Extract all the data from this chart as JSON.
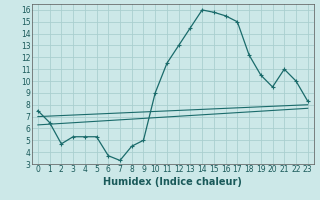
{
  "title": "",
  "xlabel": "Humidex (Indice chaleur)",
  "bg_color": "#cce8e8",
  "grid_color": "#aacfcf",
  "line_color": "#1a6b6b",
  "xlim": [
    -0.5,
    23.5
  ],
  "ylim": [
    3,
    16.5
  ],
  "x_ticks": [
    0,
    1,
    2,
    3,
    4,
    5,
    6,
    7,
    8,
    9,
    10,
    11,
    12,
    13,
    14,
    15,
    16,
    17,
    18,
    19,
    20,
    21,
    22,
    23
  ],
  "y_ticks": [
    3,
    4,
    5,
    6,
    7,
    8,
    9,
    10,
    11,
    12,
    13,
    14,
    15,
    16
  ],
  "main_x": [
    0,
    1,
    2,
    3,
    4,
    5,
    6,
    7,
    8,
    9,
    10,
    11,
    12,
    13,
    14,
    15,
    16,
    17,
    18,
    19,
    20,
    21,
    22,
    23
  ],
  "main_y": [
    7.5,
    6.5,
    4.7,
    5.3,
    5.3,
    5.3,
    3.7,
    3.3,
    4.5,
    5.0,
    9.0,
    11.5,
    13.0,
    14.5,
    16.0,
    15.8,
    15.5,
    15.0,
    12.2,
    10.5,
    9.5,
    11.0,
    10.0,
    8.3
  ],
  "line2_x": [
    0,
    23
  ],
  "line2_y": [
    7.0,
    8.0
  ],
  "line3_x": [
    0,
    23
  ],
  "line3_y": [
    6.3,
    7.7
  ],
  "tick_fontsize": 5.5,
  "xlabel_fontsize": 7.0
}
